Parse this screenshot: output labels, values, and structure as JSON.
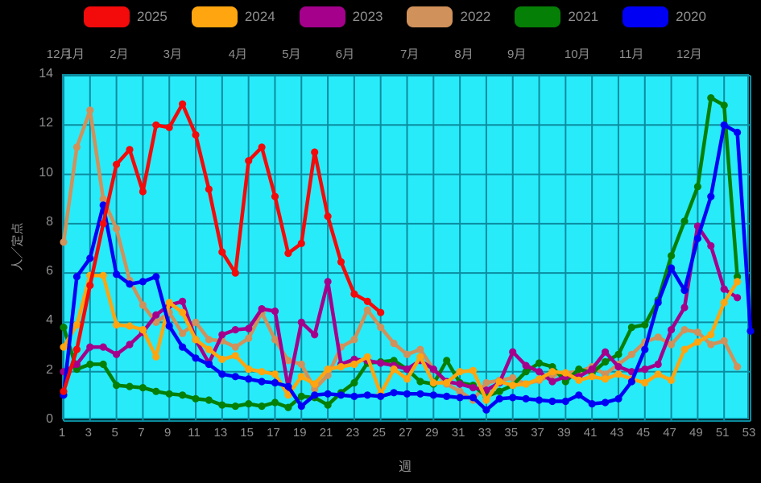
{
  "colors": {
    "background": "#000000",
    "plot_background": "#28ebfa",
    "grid": "#0b8ca0",
    "text": "#8f8f8f"
  },
  "legend": {
    "items": [
      {
        "label": "2025",
        "color": "#f30a0a"
      },
      {
        "label": "2024",
        "color": "#ffa510"
      },
      {
        "label": "2023",
        "color": "#a4008c"
      },
      {
        "label": "2022",
        "color": "#d0915a"
      },
      {
        "label": "2021",
        "color": "#067f06"
      },
      {
        "label": "2020",
        "color": "#0000f5"
      }
    ]
  },
  "month_axis": {
    "labels": [
      {
        "text": "12月",
        "pct": -0.4
      },
      {
        "text": "1月",
        "pct": 1.9
      },
      {
        "text": "2月",
        "pct": 8.3
      },
      {
        "text": "3月",
        "pct": 16.1
      },
      {
        "text": "4月",
        "pct": 25.6
      },
      {
        "text": "5月",
        "pct": 33.4
      },
      {
        "text": "6月",
        "pct": 41.2
      },
      {
        "text": "7月",
        "pct": 50.6
      },
      {
        "text": "8月",
        "pct": 58.5
      },
      {
        "text": "9月",
        "pct": 66.2
      },
      {
        "text": "10月",
        "pct": 75.0
      },
      {
        "text": "11月",
        "pct": 82.9
      },
      {
        "text": "12月",
        "pct": 91.3
      }
    ]
  },
  "axes": {
    "y_title": "人／定点",
    "x_title": "週",
    "y_ticks": [
      0,
      2,
      4,
      6,
      8,
      10,
      12,
      14
    ],
    "x_ticks": [
      1,
      3,
      5,
      7,
      9,
      11,
      13,
      15,
      17,
      19,
      21,
      23,
      25,
      27,
      29,
      31,
      33,
      35,
      37,
      39,
      41,
      43,
      45,
      47,
      49,
      51,
      53
    ]
  },
  "chart_data": {
    "type": "line",
    "xlabel": "週",
    "ylabel": "人／定点",
    "xlim": [
      1,
      53
    ],
    "ylim": [
      0,
      14
    ],
    "grid": true,
    "legend_position": "top",
    "x_unit": "week_number",
    "series": [
      {
        "name": "2022",
        "color": "#d0915a",
        "start_week": 1,
        "values": [
          7.25,
          11.1,
          12.6,
          9.0,
          7.8,
          5.7,
          4.7,
          4.0,
          4.4,
          3.55,
          4.0,
          3.3,
          3.25,
          3.0,
          3.35,
          4.4,
          3.3,
          2.45,
          2.3,
          1.3,
          1.85,
          3.0,
          3.3,
          4.5,
          3.8,
          3.15,
          2.7,
          2.9,
          2.1,
          1.5,
          1.2,
          0.85,
          1.55,
          1.65,
          1.75,
          1.5,
          1.65,
          1.85,
          1.95,
          2.0,
          2.2,
          1.9,
          2.3,
          2.7,
          3.2,
          3.4,
          3.1,
          3.7,
          3.6,
          3.1,
          3.25,
          2.2
        ]
      },
      {
        "name": "2021",
        "color": "#067f06",
        "start_week": 1,
        "values": [
          3.8,
          2.1,
          2.3,
          2.3,
          1.45,
          1.4,
          1.35,
          1.2,
          1.1,
          1.05,
          0.9,
          0.85,
          0.65,
          0.6,
          0.7,
          0.6,
          0.75,
          0.55,
          1.0,
          0.95,
          0.65,
          1.15,
          1.55,
          2.35,
          2.4,
          2.45,
          2.1,
          1.6,
          1.5,
          2.45,
          1.55,
          1.45,
          1.0,
          1.2,
          1.45,
          2.0,
          2.35,
          2.2,
          1.6,
          2.1,
          1.95,
          2.4,
          2.7,
          3.8,
          3.9,
          4.9,
          6.7,
          8.1,
          9.5,
          13.1,
          12.8,
          5.85
        ]
      },
      {
        "name": "2023",
        "color": "#a4008c",
        "start_week": 1,
        "values": [
          2.0,
          2.3,
          3.0,
          3.0,
          2.7,
          3.1,
          3.6,
          4.3,
          4.7,
          4.85,
          3.3,
          2.35,
          3.5,
          3.7,
          3.75,
          4.55,
          4.45,
          1.35,
          4.0,
          3.5,
          5.65,
          2.3,
          2.5,
          2.45,
          2.35,
          2.25,
          2.1,
          2.45,
          2.1,
          1.6,
          1.5,
          1.35,
          1.25,
          1.55,
          2.8,
          2.25,
          2.0,
          1.6,
          1.8,
          1.8,
          2.1,
          2.8,
          2.2,
          2.0,
          2.1,
          2.3,
          3.7,
          4.6,
          7.9,
          7.1,
          5.35,
          5.0
        ]
      },
      {
        "name": "2024",
        "color": "#ffa510",
        "start_week": 1,
        "values": [
          3.0,
          3.9,
          5.9,
          5.9,
          3.9,
          3.85,
          3.7,
          2.6,
          4.8,
          4.4,
          3.3,
          2.9,
          2.5,
          2.65,
          2.1,
          2.0,
          1.9,
          1.05,
          1.8,
          1.5,
          2.1,
          2.2,
          2.3,
          2.6,
          1.1,
          2.1,
          1.7,
          2.6,
          1.55,
          1.55,
          2.0,
          2.05,
          0.85,
          1.6,
          1.45,
          1.5,
          1.7,
          2.0,
          1.95,
          1.65,
          1.8,
          1.7,
          1.9,
          1.7,
          1.55,
          1.9,
          1.65,
          2.9,
          3.2,
          3.5,
          4.8,
          5.65
        ]
      },
      {
        "name": "2020",
        "color": "#0000f5",
        "start_week": 1,
        "values": [
          1.05,
          5.85,
          6.6,
          8.75,
          5.95,
          5.55,
          5.65,
          5.85,
          3.85,
          3.0,
          2.55,
          2.3,
          1.9,
          1.8,
          1.7,
          1.6,
          1.55,
          1.4,
          0.6,
          1.05,
          1.1,
          1.05,
          1.0,
          1.05,
          1.0,
          1.15,
          1.1,
          1.1,
          1.05,
          1.0,
          0.95,
          0.95,
          0.45,
          0.9,
          0.95,
          0.9,
          0.85,
          0.8,
          0.8,
          1.05,
          0.7,
          0.75,
          0.9,
          1.6,
          2.9,
          4.8,
          6.2,
          5.3,
          7.4,
          9.1,
          12.0,
          11.7,
          3.65
        ]
      },
      {
        "name": "2025",
        "color": "#f30a0a",
        "start_week": 1,
        "values": [
          1.2,
          2.9,
          5.5,
          8.0,
          10.4,
          11.0,
          9.3,
          12.0,
          11.9,
          12.85,
          11.6,
          9.4,
          6.85,
          6.0,
          10.55,
          11.1,
          9.1,
          6.8,
          7.2,
          10.9,
          8.3,
          6.45,
          5.15,
          4.85,
          4.4
        ]
      }
    ]
  }
}
